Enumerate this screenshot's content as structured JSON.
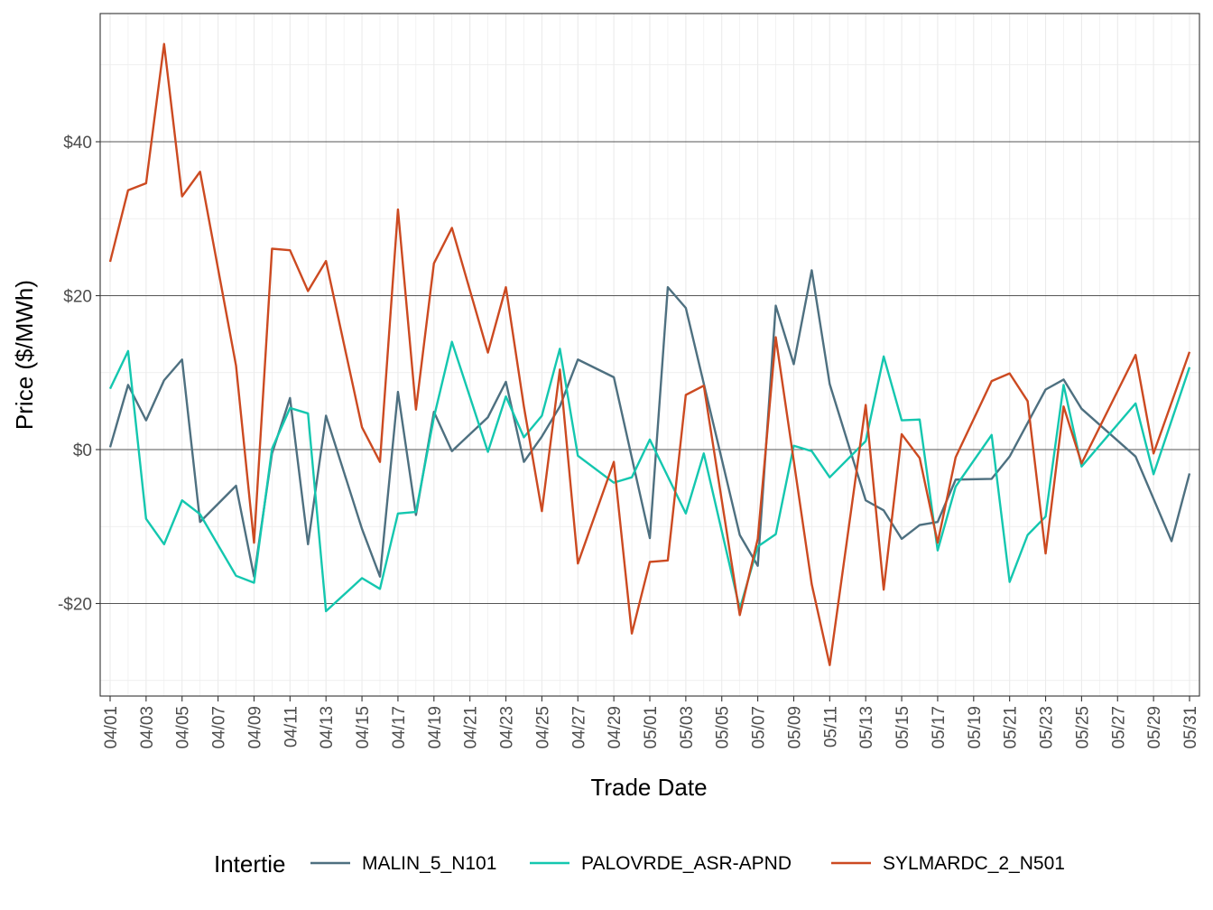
{
  "chart_data": {
    "type": "line",
    "xlabel": "Trade Date",
    "ylabel": "Price ($/MWh)",
    "x_tick_labels": [
      "04/01",
      "04/03",
      "04/05",
      "04/07",
      "04/09",
      "04/11",
      "04/13",
      "04/15",
      "04/17",
      "04/19",
      "04/21",
      "04/23",
      "04/25",
      "04/27",
      "04/29",
      "05/01",
      "05/03",
      "05/05",
      "05/07",
      "05/09",
      "05/11",
      "05/13",
      "05/15",
      "05/17",
      "05/19",
      "05/21",
      "05/23",
      "05/25",
      "05/27",
      "05/29",
      "05/31"
    ],
    "y_ticks": [
      -20,
      0,
      20,
      40
    ],
    "y_tick_labels": [
      "-$20",
      "$0",
      "$20",
      "$40"
    ],
    "ylim": [
      -30.5,
      55.5
    ],
    "xlim": [
      "03/31",
      "05/31"
    ],
    "grid": true,
    "legend": {
      "title": "Intertie",
      "position": "bottom"
    },
    "series": [
      {
        "name": "MALIN_5_N101",
        "color": "#4E7080",
        "points": [
          [
            "04/01",
            0.3
          ],
          [
            "04/02",
            8.4
          ],
          [
            "04/03",
            3.8
          ],
          [
            "04/04",
            9.0
          ],
          [
            "04/05",
            11.7
          ],
          [
            "04/06",
            -9.4
          ],
          [
            "04/08",
            -4.7
          ],
          [
            "04/09",
            -16.5
          ],
          [
            "04/10",
            -0.5
          ],
          [
            "04/11",
            6.7
          ],
          [
            "04/12",
            -12.3
          ],
          [
            "04/13",
            4.4
          ],
          [
            "04/15",
            -10.3
          ],
          [
            "04/16",
            -16.5
          ],
          [
            "04/17",
            7.5
          ],
          [
            "04/18",
            -8.5
          ],
          [
            "04/19",
            4.9
          ],
          [
            "04/20",
            -0.2
          ],
          [
            "04/22",
            4.2
          ],
          [
            "04/23",
            8.8
          ],
          [
            "04/24",
            -1.6
          ],
          [
            "04/25",
            1.7
          ],
          [
            "04/26",
            5.6
          ],
          [
            "04/27",
            11.7
          ],
          [
            "04/29",
            9.4
          ],
          [
            "05/01",
            -11.5
          ],
          [
            "05/02",
            21.1
          ],
          [
            "05/03",
            18.4
          ],
          [
            "05/06",
            -11.1
          ],
          [
            "05/07",
            -15.1
          ],
          [
            "05/08",
            18.7
          ],
          [
            "05/09",
            11.1
          ],
          [
            "05/10",
            23.3
          ],
          [
            "05/11",
            8.5
          ],
          [
            "05/13",
            -6.6
          ],
          [
            "05/14",
            -7.9
          ],
          [
            "05/15",
            -11.6
          ],
          [
            "05/16",
            -9.8
          ],
          [
            "05/17",
            -9.4
          ],
          [
            "05/18",
            -3.9
          ],
          [
            "05/20",
            -3.8
          ],
          [
            "05/21",
            -0.9
          ],
          [
            "05/23",
            7.8
          ],
          [
            "05/24",
            9.1
          ],
          [
            "05/25",
            5.3
          ],
          [
            "05/28",
            -0.9
          ],
          [
            "05/30",
            -11.9
          ],
          [
            "05/31",
            -3.1
          ]
        ]
      },
      {
        "name": "PALOVRDE_ASR-APND",
        "color": "#14C7AF",
        "points": [
          [
            "04/01",
            7.9
          ],
          [
            "04/02",
            12.8
          ],
          [
            "04/03",
            -9.0
          ],
          [
            "04/04",
            -12.3
          ],
          [
            "04/05",
            -6.6
          ],
          [
            "04/06",
            -8.4
          ],
          [
            "04/08",
            -16.4
          ],
          [
            "04/09",
            -17.3
          ],
          [
            "04/10",
            0.1
          ],
          [
            "04/11",
            5.4
          ],
          [
            "04/12",
            4.7
          ],
          [
            "04/13",
            -21.0
          ],
          [
            "04/15",
            -16.7
          ],
          [
            "04/16",
            -18.1
          ],
          [
            "04/17",
            -8.3
          ],
          [
            "04/18",
            -8.1
          ],
          [
            "04/19",
            4.2
          ],
          [
            "04/20",
            14.0
          ],
          [
            "04/22",
            -0.3
          ],
          [
            "04/23",
            6.9
          ],
          [
            "04/24",
            1.6
          ],
          [
            "04/25",
            4.4
          ],
          [
            "04/26",
            13.1
          ],
          [
            "04/27",
            -0.8
          ],
          [
            "04/29",
            -4.3
          ],
          [
            "04/30",
            -3.6
          ],
          [
            "05/01",
            1.3
          ],
          [
            "05/03",
            -8.3
          ],
          [
            "05/04",
            -0.5
          ],
          [
            "05/06",
            -20.7
          ],
          [
            "05/07",
            -12.6
          ],
          [
            "05/08",
            -11.0
          ],
          [
            "05/09",
            0.5
          ],
          [
            "05/10",
            -0.2
          ],
          [
            "05/11",
            -3.6
          ],
          [
            "05/13",
            1.1
          ],
          [
            "05/14",
            12.1
          ],
          [
            "05/15",
            3.8
          ],
          [
            "05/16",
            3.9
          ],
          [
            "05/17",
            -13.1
          ],
          [
            "05/18",
            -4.8
          ],
          [
            "05/20",
            1.9
          ],
          [
            "05/21",
            -17.2
          ],
          [
            "05/22",
            -11.1
          ],
          [
            "05/23",
            -8.7
          ],
          [
            "05/24",
            8.4
          ],
          [
            "05/25",
            -2.2
          ],
          [
            "05/28",
            6.0
          ],
          [
            "05/29",
            -3.2
          ],
          [
            "05/31",
            10.7
          ]
        ]
      },
      {
        "name": "SYLMARDC_2_N501",
        "color": "#CC4A21",
        "points": [
          [
            "04/01",
            24.4
          ],
          [
            "04/02",
            33.7
          ],
          [
            "04/03",
            34.6
          ],
          [
            "04/04",
            52.7
          ],
          [
            "04/05",
            32.9
          ],
          [
            "04/06",
            36.1
          ],
          [
            "04/08",
            10.9
          ],
          [
            "04/09",
            -12.1
          ],
          [
            "04/10",
            26.1
          ],
          [
            "04/11",
            25.9
          ],
          [
            "04/12",
            20.6
          ],
          [
            "04/13",
            24.5
          ],
          [
            "04/15",
            2.9
          ],
          [
            "04/16",
            -1.6
          ],
          [
            "04/17",
            31.2
          ],
          [
            "04/18",
            5.2
          ],
          [
            "04/19",
            24.2
          ],
          [
            "04/20",
            28.8
          ],
          [
            "04/22",
            12.6
          ],
          [
            "04/23",
            21.1
          ],
          [
            "04/24",
            5.6
          ],
          [
            "04/25",
            -8.0
          ],
          [
            "04/26",
            10.4
          ],
          [
            "04/27",
            -14.8
          ],
          [
            "04/29",
            -1.6
          ],
          [
            "04/30",
            -23.9
          ],
          [
            "05/01",
            -14.6
          ],
          [
            "05/02",
            -14.4
          ],
          [
            "05/03",
            7.1
          ],
          [
            "05/04",
            8.3
          ],
          [
            "05/06",
            -21.5
          ],
          [
            "05/07",
            -11.6
          ],
          [
            "05/08",
            14.6
          ],
          [
            "05/10",
            -17.5
          ],
          [
            "05/11",
            -28.0
          ],
          [
            "05/13",
            5.8
          ],
          [
            "05/14",
            -18.2
          ],
          [
            "05/15",
            2.0
          ],
          [
            "05/16",
            -1.1
          ],
          [
            "05/17",
            -12.1
          ],
          [
            "05/18",
            -1.0
          ],
          [
            "05/20",
            8.9
          ],
          [
            "05/21",
            9.9
          ],
          [
            "05/22",
            6.3
          ],
          [
            "05/23",
            -13.5
          ],
          [
            "05/24",
            5.6
          ],
          [
            "05/25",
            -1.8
          ],
          [
            "05/28",
            12.3
          ],
          [
            "05/29",
            -0.5
          ],
          [
            "05/31",
            12.7
          ]
        ]
      }
    ]
  }
}
